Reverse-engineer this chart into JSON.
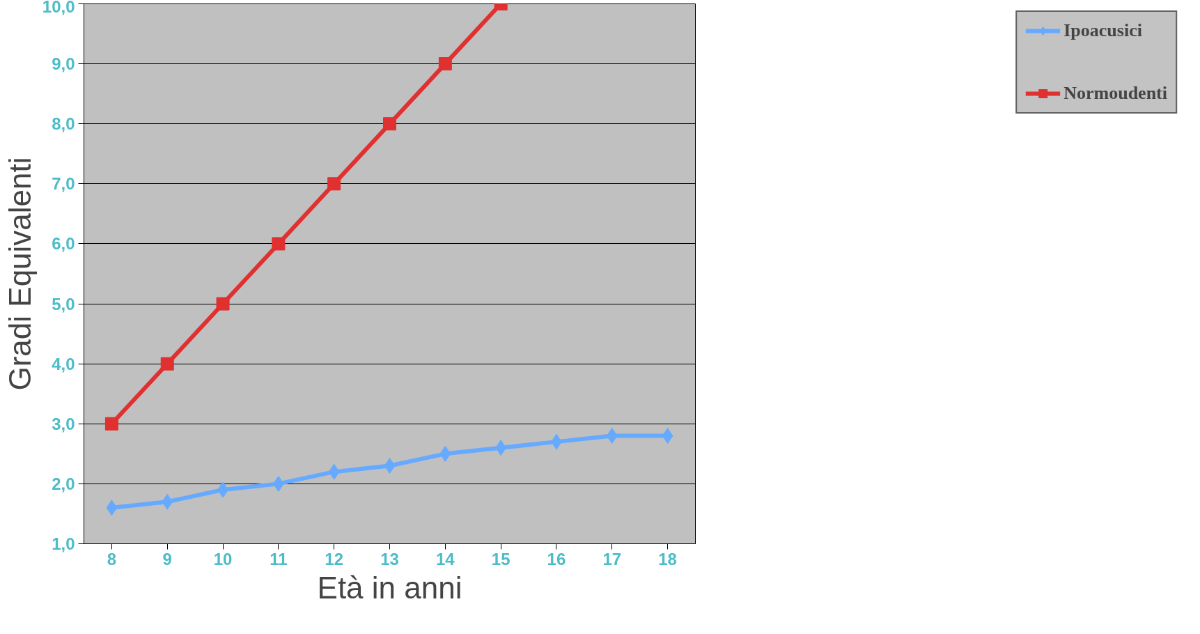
{
  "chart_data": {
    "type": "line",
    "xlabel": "Età in anni",
    "ylabel": "Gradi Equivalenti",
    "categories": [
      "8",
      "9",
      "10",
      "11",
      "12",
      "13",
      "14",
      "15",
      "16",
      "17",
      "18"
    ],
    "series": [
      {
        "name": "Ipoacusici",
        "color": "#66aaff",
        "marker": "diamond",
        "values": [
          1.6,
          1.7,
          1.9,
          2.0,
          2.2,
          2.3,
          2.5,
          2.6,
          2.7,
          2.8,
          2.8
        ]
      },
      {
        "name": "Normoudenti",
        "color": "#e03030",
        "marker": "square",
        "values": [
          3,
          4,
          5,
          6,
          7,
          8,
          9,
          10,
          null,
          null,
          null
        ]
      }
    ],
    "ylim": [
      1,
      10
    ],
    "yticks": [
      {
        "value": 1,
        "label": "1,0"
      },
      {
        "value": 2,
        "label": "2,0"
      },
      {
        "value": 3,
        "label": "3,0"
      },
      {
        "value": 4,
        "label": "4,0"
      },
      {
        "value": 5,
        "label": "5,0"
      },
      {
        "value": 6,
        "label": "6,0"
      },
      {
        "value": 7,
        "label": "7,0"
      },
      {
        "value": 8,
        "label": "8,0"
      },
      {
        "value": 9,
        "label": "9,0"
      },
      {
        "value": 10,
        "label": "10,0"
      }
    ],
    "grid": "y",
    "legend": "right",
    "line_style": "solid"
  }
}
